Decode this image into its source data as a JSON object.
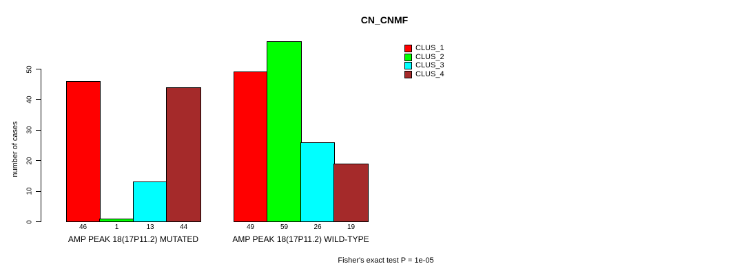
{
  "chart_data": {
    "type": "bar",
    "title": "CN_CNMF",
    "ylabel": "number of cases",
    "xlabel": "",
    "ylim": [
      0,
      59
    ],
    "yticks": [
      0,
      10,
      20,
      30,
      40,
      50
    ],
    "grid": false,
    "legend_position": "top-right-outside",
    "bar_borders": "#000000",
    "categories": [
      "AMP PEAK 18(17P11.2) MUTATED",
      "AMP PEAK 18(17P11.2) WILD-TYPE"
    ],
    "series": [
      {
        "name": "CLUS_1",
        "color": "#FF0000",
        "values": [
          46,
          49
        ]
      },
      {
        "name": "CLUS_2",
        "color": "#00FF00",
        "values": [
          1,
          59
        ]
      },
      {
        "name": "CLUS_3",
        "color": "#00FFFF",
        "values": [
          13,
          26
        ]
      },
      {
        "name": "CLUS_4",
        "color": "#A52A2A",
        "values": [
          44,
          19
        ]
      }
    ],
    "bar_value_labels_shown": true,
    "annotation": "Fisher's exact test P = 1e-05"
  },
  "colors": {
    "background": "#FFFFFF",
    "axis": "#000000",
    "text": "#000000"
  }
}
